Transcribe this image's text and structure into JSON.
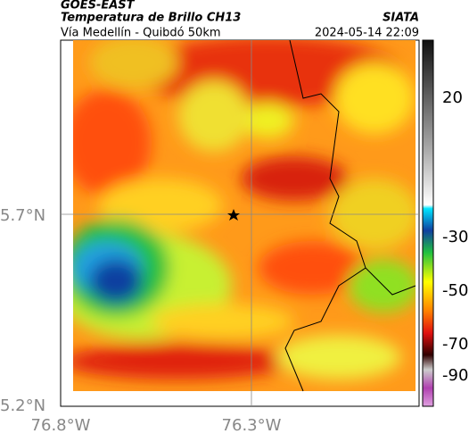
{
  "header": {
    "source": "GOES-EAST",
    "title": "Temperatura de Brillo CH13",
    "agency": "SIATA",
    "subtitle": "Vía Medellín - Quibdó 50km",
    "datetime": "2024-05-14 22:09"
  },
  "axes": {
    "lat_labels": [
      "5.7°N",
      "5.2°N"
    ],
    "lon_labels": [
      "76.8°W",
      "76.3°W"
    ]
  },
  "colorbar": {
    "ticks": [
      "20",
      "-30",
      "-50",
      "-70",
      "-90"
    ]
  }
}
